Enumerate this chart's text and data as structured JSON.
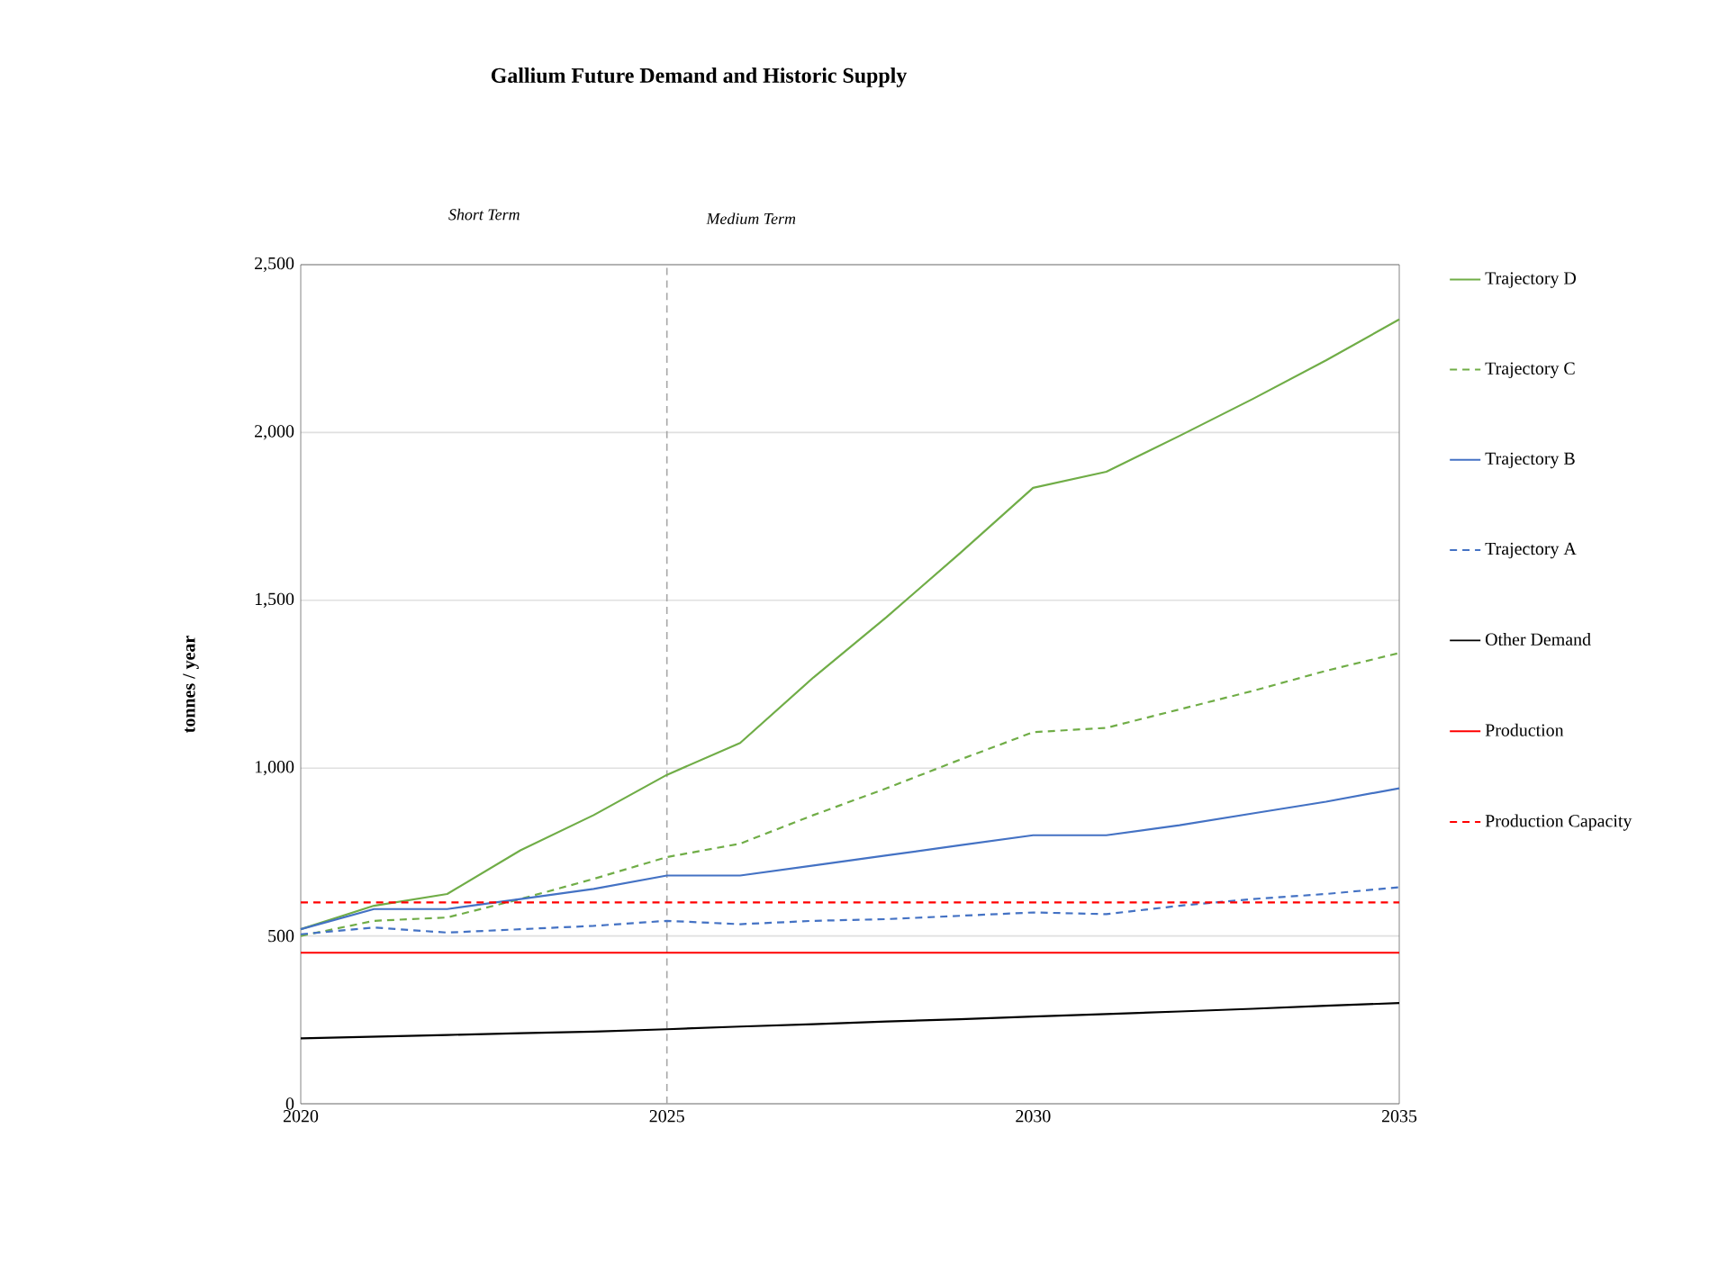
{
  "chart_data": {
    "type": "line",
    "title": "Gallium Future Demand and Historic Supply",
    "ylabel": "tonnes / year",
    "annotations": [
      "Short Term",
      "Medium Term"
    ],
    "x": [
      2020,
      2021,
      2022,
      2023,
      2024,
      2025,
      2026,
      2027,
      2028,
      2029,
      2030,
      2031,
      2032,
      2033,
      2034,
      2035
    ],
    "series": [
      {
        "name": "Trajectory D",
        "color": "#70ad47",
        "line_style": "solid",
        "values": [
          520,
          590,
          625,
          755,
          860,
          980,
          1075,
          1270,
          1450,
          1640,
          1835,
          1883,
          1990,
          2100,
          2215,
          2337
        ]
      },
      {
        "name": "Trajectory C",
        "color": "#70ad47",
        "line_style": "dashed",
        "values": [
          500,
          545,
          555,
          610,
          670,
          735,
          775,
          860,
          940,
          1025,
          1107,
          1120,
          1175,
          1230,
          1290,
          1343
        ]
      },
      {
        "name": "Trajectory B",
        "color": "#4472c4",
        "line_style": "solid",
        "values": [
          520,
          580,
          580,
          610,
          640,
          680,
          680,
          710,
          740,
          770,
          800,
          800,
          830,
          865,
          900,
          940
        ]
      },
      {
        "name": "Trajectory A",
        "color": "#4472c4",
        "line_style": "dashed",
        "values": [
          505,
          525,
          510,
          520,
          530,
          545,
          535,
          545,
          550,
          560,
          570,
          565,
          590,
          610,
          625,
          645
        ]
      },
      {
        "name": "Other Demand",
        "color": "#000000",
        "line_style": "solid",
        "values": [
          195,
          200,
          205,
          210,
          215,
          222,
          230,
          237,
          245,
          252,
          260,
          267,
          275,
          283,
          292,
          300
        ]
      },
      {
        "name": "Production",
        "color": "#ff0000",
        "line_style": "solid",
        "values": [
          450,
          450,
          450,
          450,
          450,
          450,
          450,
          450,
          450,
          450,
          450,
          450,
          450,
          450,
          450,
          450
        ]
      },
      {
        "name": "Production Capacity",
        "color": "#ff0000",
        "line_style": "dashed",
        "values": [
          600,
          600,
          600,
          600,
          600,
          600,
          600,
          600,
          600,
          600,
          600,
          600,
          600,
          600,
          600,
          600
        ]
      }
    ],
    "xlim": [
      2020,
      2035
    ],
    "xticks": [
      2020,
      2025,
      2030,
      2035
    ],
    "ylim": [
      0,
      2500
    ],
    "yticks": [
      0,
      {
        "value": 500,
        "label": "500"
      },
      {
        "value": 1000,
        "label": "1,000"
      },
      {
        "value": 1500,
        "label": "1,500"
      },
      {
        "value": 2000,
        "label": "2,000"
      },
      {
        "value": 2500,
        "label": "2,500"
      }
    ],
    "ref_lines": [
      {
        "axis": "x",
        "value": 2025,
        "color": "#a6a6a6",
        "line_style": "dashed"
      }
    ],
    "grid": "y",
    "legend": "right",
    "marker": "none"
  }
}
